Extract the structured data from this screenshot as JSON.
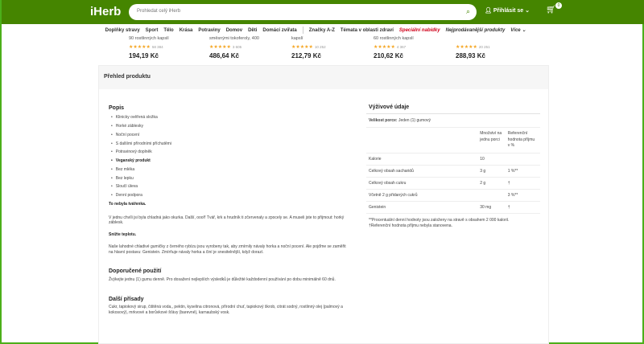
{
  "header": {
    "logo": "iHerb",
    "search_placeholder": "Prohledat celý iHerb",
    "login": "Přihlásit se",
    "cart_count": "0"
  },
  "nav": [
    "Doplňky stravy",
    "Sport",
    "Tělo",
    "Krása",
    "Potraviny",
    "Domov",
    "Děti",
    "Domácí zvířata",
    "Značky A-Z",
    "Témata v oblasti zdraví",
    "Speciální nabídky",
    "Nejprodávanější produkty",
    "Více"
  ],
  "products": [
    {
      "name": "90 rostlinných kapslí",
      "reviews": "58 384",
      "price": "194,19 Kč"
    },
    {
      "name": "směsnými tokoferoly, 400",
      "reviews": "3 605",
      "price": "486,64 Kč"
    },
    {
      "name": "kapslí",
      "reviews": "10 252",
      "price": "212,79 Kč"
    },
    {
      "name": "60 rostlinných kapslí",
      "reviews": "4 367",
      "price": "210,62 Kč"
    },
    {
      "name": "",
      "reviews": "20 251",
      "price": "288,93 Kč"
    }
  ],
  "overview": {
    "title": "Přehled produktu",
    "desc_title": "Popis",
    "bullets": [
      "Klinicky ověřená složka",
      "Horké záblesky",
      "Noční pocení",
      "S dalšími přírodními příchutěmi",
      "Potravinový doplněk",
      "Veganský produkt",
      "Bez mléka",
      "Bez lepku",
      "Sloučí úleva",
      "Denní podpora"
    ],
    "p1_bold": "To nebyla tvářenka.",
    "p1": "V jednu chvíli jsi byla chladná jako okurka. Další, oooř! Tvář, krk a hrudník ti zčervenaly a zpocely se. A museli jste to přijmout: horký záblesk.",
    "p2_bold": "Snižte teplotu.",
    "p2": "Naše lahodné chladivé gumičky z černého rybízu jsou vyrobeny tak, aby zmírnily návaly horka a noční pocení. Ale pojďme se zaměřit na hlavní postavu: Genistein. Zmírňuje návaly horka a činí je snesitelnější, když dorazí.",
    "use_title": "Doporučené použití",
    "use": "Žvýkejte jednu (1) gumu denně. Pro dosažení nejlepších výsledků je důležité každodenní používání po dobu minimálně 60 dnů.",
    "other_title": "Další přísady",
    "other": "Cukr, tapiokový sirup, čištěná voda,, pektin, kyselina citronová, přírodní chuť, tapiokový škrob, citrát sodný, rostlinný olej (palmový a kokosový), mrkvové a borůvkové šťávy (barevné), karnaubský vosk."
  },
  "nutrition": {
    "title": "Výživové údaje",
    "serving_label": "Velikost porce:",
    "serving": "Jeden (1) gumový",
    "col_amount": "Množství na jednu porci",
    "col_ref": "Referenční hodnota příjmu v %",
    "rows": [
      {
        "name": "Kalorie",
        "amount": "10",
        "ref": ""
      },
      {
        "name": "Celkový obsah sacharidů",
        "amount": "3 g",
        "ref": "1 %**"
      },
      {
        "name": "Celkový obsah cukru",
        "amount": "2 g",
        "ref": "†"
      },
      {
        "name": "Včetně 2 g přidaných cukrů",
        "amount": "",
        "ref": "3 %**"
      },
      {
        "name": "Genistein",
        "amount": "30 mg",
        "ref": "†"
      }
    ],
    "note1": "**Procentuální denní hodnoty jsou založeny na stravě s obsahem 2 000 kalorií.",
    "note2": "†Referenční hodnota příjmu nebyla stanovena."
  }
}
